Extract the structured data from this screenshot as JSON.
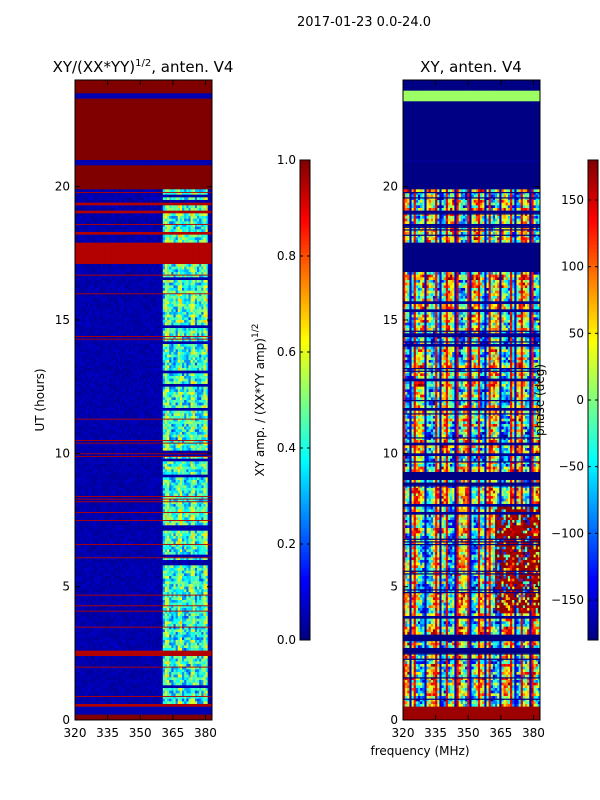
{
  "figure": {
    "suptitle": "2017-01-23 0.0-24.0",
    "xlabel": "frequency (MHz)"
  },
  "chart_data": [
    {
      "type": "heatmap",
      "id": "amp",
      "title_main": "XY/(XX*YY)",
      "title_sup": "1/2",
      "title_tail": ", anten. V4",
      "xlabel": "",
      "ylabel": "UT (hours)",
      "xlim": [
        320,
        383
      ],
      "ylim": [
        0,
        24
      ],
      "xticks": [
        320,
        335,
        350,
        365,
        380
      ],
      "yticks": [
        0,
        5,
        10,
        15,
        20
      ],
      "colorbar": {
        "label_main": "XY amp. / (XX*YY amp)",
        "label_sup": "1/2",
        "range": [
          0.0,
          1.0
        ],
        "ticks": [
          "0.0",
          "0.2",
          "0.4",
          "0.6",
          "0.8",
          "1.0"
        ],
        "tick_values": [
          0.0,
          0.2,
          0.4,
          0.6,
          0.8,
          1.0
        ],
        "colormap": "jet"
      },
      "bands": [
        {
          "from": 0,
          "to": 0.2,
          "value": 1.0
        },
        {
          "from": 0.2,
          "to": 0.5,
          "value": 0.05
        },
        {
          "from": 0.5,
          "to": 0.6,
          "value": 0.95
        },
        {
          "from": 2.4,
          "to": 2.6,
          "value": 0.95
        },
        {
          "from": 17.1,
          "to": 17.9,
          "value": 0.95
        },
        {
          "from": 18.2,
          "to": 18.3,
          "value": 0.95
        },
        {
          "from": 19.0,
          "to": 19.1,
          "value": 0.95
        },
        {
          "from": 19.3,
          "to": 19.4,
          "value": 0.95
        },
        {
          "from": 19.9,
          "to": 20.8,
          "value": 1.0
        },
        {
          "from": 20.8,
          "to": 21.0,
          "value": 0.05
        },
        {
          "from": 21.0,
          "to": 23.3,
          "value": 1.0
        },
        {
          "from": 23.3,
          "to": 23.5,
          "value": 0.05
        },
        {
          "from": 23.5,
          "to": 24.0,
          "value": 1.0
        }
      ]
    },
    {
      "type": "heatmap",
      "id": "phase",
      "title": "XY, anten. V4",
      "xlabel": "",
      "ylabel": "",
      "xlim": [
        320,
        383
      ],
      "ylim": [
        0,
        24
      ],
      "xticks": [
        320,
        335,
        350,
        365,
        380
      ],
      "yticks": [
        0,
        5,
        10,
        15,
        20
      ],
      "colorbar": {
        "label": "phase (deg)",
        "range": [
          -180,
          180
        ],
        "ticks": [
          "−150",
          "−100",
          "−50",
          "0",
          "50",
          "100",
          "150"
        ],
        "tick_values": [
          -150,
          -100,
          -50,
          0,
          50,
          100,
          150
        ],
        "colormap": "jet"
      },
      "bands": [
        {
          "from": 0,
          "to": 0.5,
          "value": 170
        },
        {
          "from": 2.5,
          "to": 2.7,
          "value": -178
        },
        {
          "from": 3.0,
          "to": 3.2,
          "value": -178
        },
        {
          "from": 9.0,
          "to": 9.3,
          "value": -178
        },
        {
          "from": 16.8,
          "to": 17.2,
          "value": -178
        },
        {
          "from": 17.2,
          "to": 17.9,
          "value": -178
        },
        {
          "from": 19.9,
          "to": 20.9,
          "value": -178
        },
        {
          "from": 21.0,
          "to": 23.2,
          "value": -178
        },
        {
          "from": 23.2,
          "to": 23.6,
          "value": 10
        },
        {
          "from": 23.6,
          "to": 24.0,
          "value": -178
        }
      ]
    }
  ]
}
